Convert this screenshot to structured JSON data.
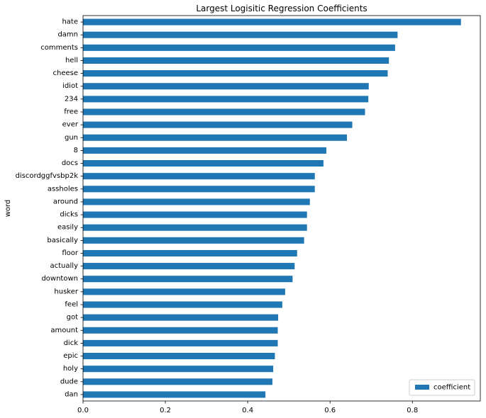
{
  "chart_data": {
    "type": "bar",
    "orientation": "horizontal",
    "title": "Largest Logisitic Regression Coefficients",
    "xlabel": "",
    "ylabel": "word",
    "xlim": [
      0,
      0.965
    ],
    "xticks": [
      0.0,
      0.2,
      0.4,
      0.6,
      0.8
    ],
    "xtick_labels": [
      "0.0",
      "0.2",
      "0.4",
      "0.6",
      "0.8"
    ],
    "grid": false,
    "legend_position": "lower-right",
    "bar_color": "#1f77b4",
    "categories": [
      "hate",
      "damn",
      "comments",
      "hell",
      "cheese",
      "idiot",
      "234",
      "free",
      "ever",
      "gun",
      "8",
      "docs",
      "discordggfvsbp2k",
      "assholes",
      "around",
      "dicks",
      "easily",
      "basically",
      "floor",
      "actually",
      "downtown",
      "husker",
      "feel",
      "got",
      "amount",
      "dick",
      "epic",
      "holy",
      "dude",
      "dan"
    ],
    "series": [
      {
        "name": "coefficient",
        "values": [
          0.918,
          0.764,
          0.758,
          0.743,
          0.74,
          0.694,
          0.693,
          0.685,
          0.654,
          0.641,
          0.591,
          0.584,
          0.563,
          0.563,
          0.551,
          0.544,
          0.544,
          0.537,
          0.52,
          0.514,
          0.509,
          0.491,
          0.484,
          0.474,
          0.473,
          0.473,
          0.466,
          0.462,
          0.46,
          0.443
        ]
      }
    ]
  }
}
